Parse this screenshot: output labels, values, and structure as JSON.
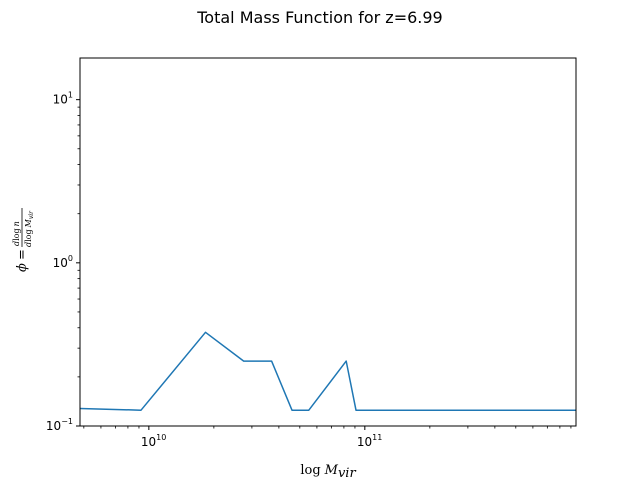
{
  "chart_data": {
    "type": "line",
    "title": "Total Mass Function for z=6.99",
    "xlabel": "log M_vir",
    "ylabel": "φ = d log n / d log M_vir",
    "xscale": "log",
    "yscale": "log",
    "xlim": [
      4800000000.0,
      950000000000.0
    ],
    "ylim": [
      0.1,
      18
    ],
    "grid": false,
    "x_ticks": [
      {
        "value": 10000000000.0,
        "base": "10",
        "exp": "10"
      },
      {
        "value": 100000000000.0,
        "base": "10",
        "exp": "11"
      }
    ],
    "y_ticks": [
      {
        "value": 0.1,
        "base": "10",
        "exp": "−1"
      },
      {
        "value": 1,
        "base": "10",
        "exp": "0"
      },
      {
        "value": 10,
        "base": "10",
        "exp": "1"
      }
    ],
    "series": [
      {
        "color": "#1f77b4",
        "x": [
          4800000000.0,
          9200000000.0,
          18300000000.0,
          27500000000.0,
          37000000000.0,
          46000000000.0,
          55000000000.0,
          82000000000.0,
          91000000000.0,
          950000000000.0
        ],
        "y": [
          0.128,
          0.125,
          0.375,
          0.25,
          0.25,
          0.125,
          0.125,
          0.25,
          0.125,
          0.125
        ]
      }
    ]
  }
}
